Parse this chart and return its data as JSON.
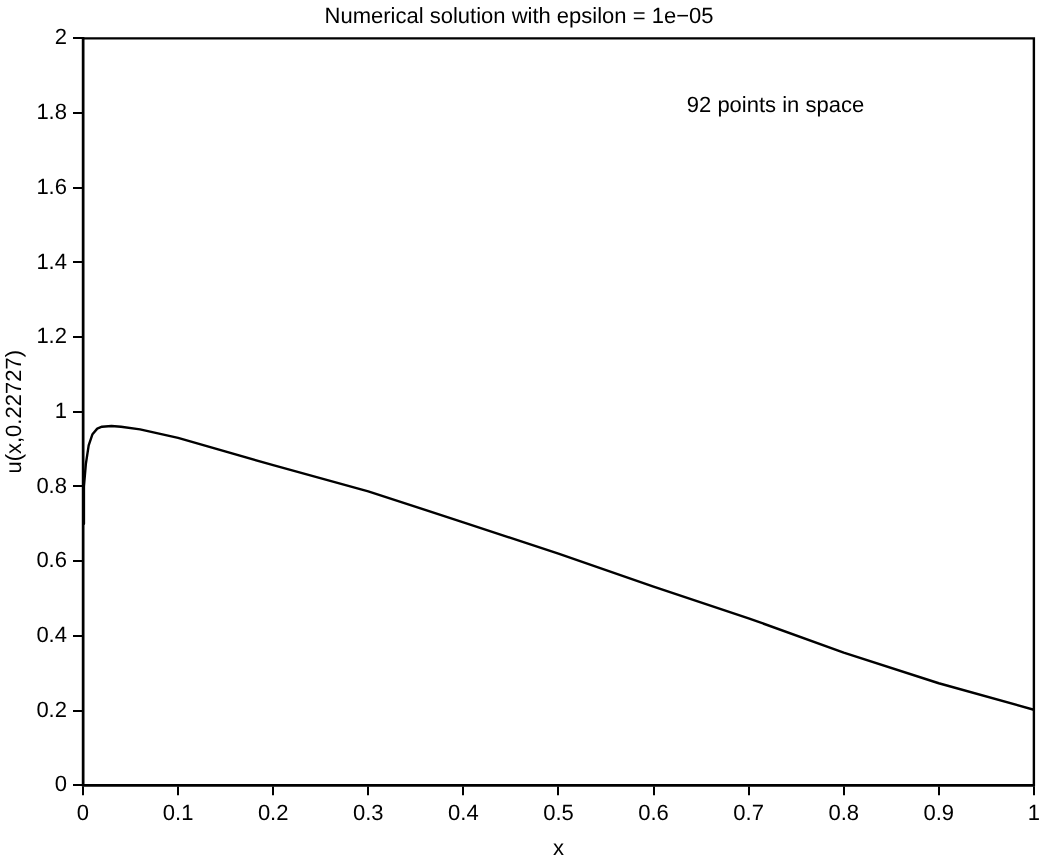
{
  "chart_data": {
    "type": "line",
    "title": "Numerical solution with epsilon = 1e−05",
    "xlabel": "x",
    "ylabel": "u(x,0.22727)",
    "annotations": [
      "92 points in space"
    ],
    "x": [
      0,
      0.001,
      0.003,
      0.006,
      0.01,
      0.015,
      0.02,
      0.03,
      0.04,
      0.06,
      0.1,
      0.2,
      0.3,
      0.4,
      0.5,
      0.6,
      0.7,
      0.8,
      0.9,
      1
    ],
    "series": [
      {
        "color": "#000000",
        "values": [
          0.7,
          0.8,
          0.86,
          0.91,
          0.94,
          0.955,
          0.96,
          0.962,
          0.96,
          0.953,
          0.93,
          0.857,
          0.787,
          0.704,
          0.62,
          0.532,
          0.447,
          0.355,
          0.273,
          0.202
        ]
      }
    ],
    "xlim": [
      0,
      1
    ],
    "xticks": [
      0,
      0.1,
      0.2,
      0.3,
      0.4,
      0.5,
      0.6,
      0.7,
      0.8,
      0.9,
      1
    ],
    "ylim": [
      0,
      2
    ],
    "yticks": [
      0,
      0.2,
      0.4,
      0.6,
      0.8,
      1,
      1.2,
      1.4,
      1.6,
      1.8,
      2
    ],
    "grid": false,
    "legend": false,
    "marker": "none",
    "line_style": "solid"
  }
}
